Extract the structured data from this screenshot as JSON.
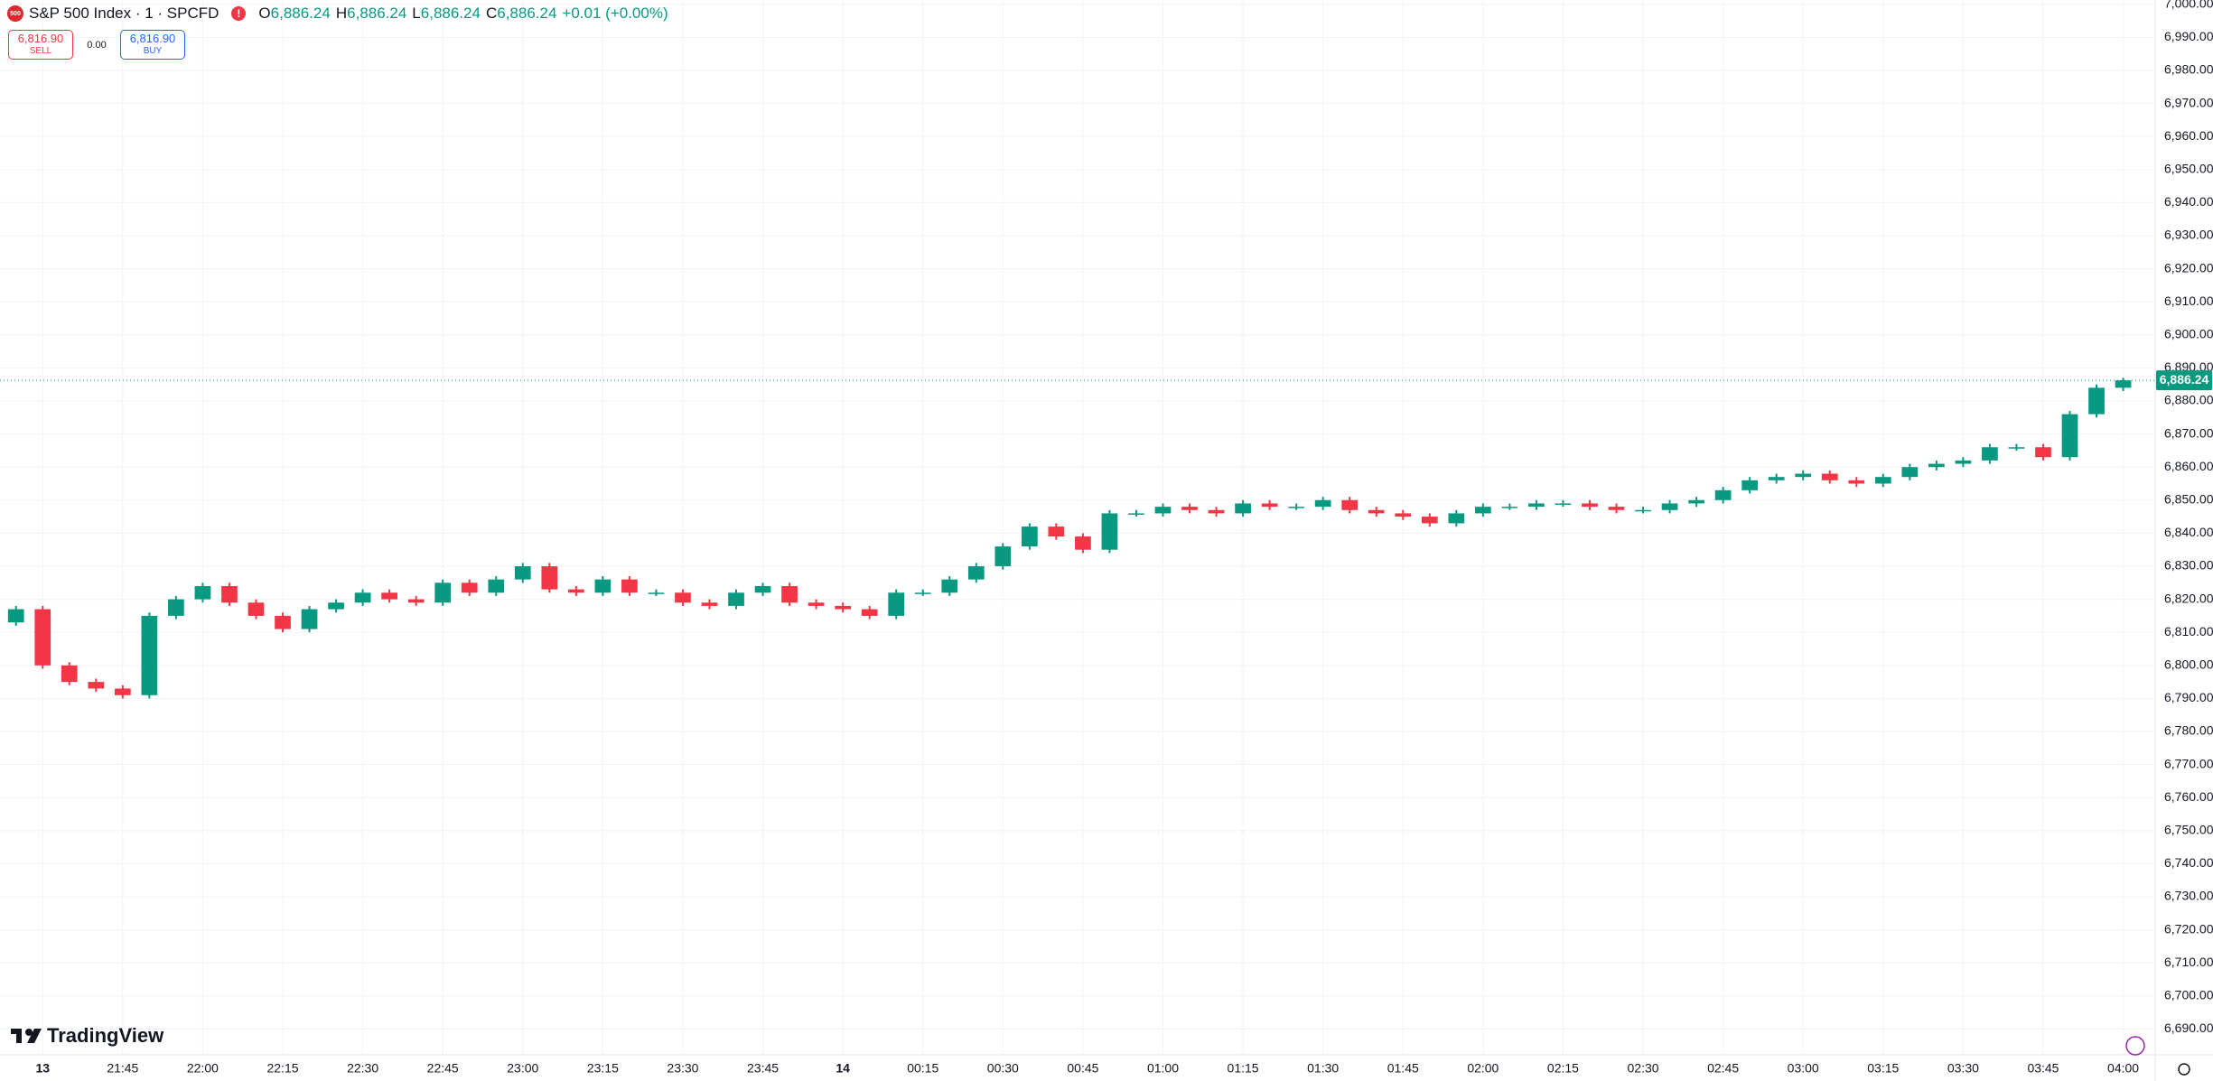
{
  "header": {
    "symbol": "S&P 500 Index · 1 · SPCFD",
    "o_label": "O",
    "open": "6,886.24",
    "h_label": "H",
    "high": "6,886.24",
    "l_label": "L",
    "low": "6,886.24",
    "c_label": "C",
    "close": "6,886.24",
    "change": "+0.01 (+0.00%)"
  },
  "trade": {
    "sell_price": "6,816.90",
    "sell": "SELL",
    "spread": "0.00",
    "buy_price": "6,816.90",
    "buy": "BUY"
  },
  "brand": "TradingView",
  "chart_data": {
    "type": "candlestick",
    "up_color": "#089981",
    "down_color": "#f23645",
    "grid": true,
    "last_label": "6,886.24",
    "x": [
      "21:25",
      "21:30",
      "21:35",
      "21:40",
      "21:45",
      "21:50",
      "21:55",
      "22:00",
      "22:05",
      "22:10",
      "22:15",
      "22:20",
      "22:25",
      "22:30",
      "22:35",
      "22:40",
      "22:45",
      "22:50",
      "22:55",
      "23:00",
      "23:05",
      "23:10",
      "23:15",
      "23:20",
      "23:25",
      "23:30",
      "23:35",
      "23:40",
      "23:45",
      "23:50",
      "23:55",
      "00:00",
      "00:05",
      "00:10",
      "00:15",
      "00:20",
      "00:25",
      "00:30",
      "00:35",
      "00:40",
      "00:45",
      "00:50",
      "00:55",
      "01:00",
      "01:05",
      "01:10",
      "01:15",
      "01:20",
      "01:25",
      "01:30",
      "01:35",
      "01:40",
      "01:45",
      "01:50",
      "01:55",
      "02:00",
      "02:05",
      "02:10",
      "02:15",
      "02:20",
      "02:25",
      "02:30",
      "02:35",
      "02:40",
      "02:45",
      "02:50",
      "02:55",
      "03:00",
      "03:05",
      "03:10",
      "03:15",
      "03:20",
      "03:25",
      "03:30",
      "03:35",
      "03:40",
      "03:45",
      "03:50",
      "03:55",
      "04:00"
    ],
    "open": [
      6813,
      6817,
      6800,
      6795,
      6793,
      6791,
      6815,
      6820,
      6824,
      6819,
      6815,
      6811,
      6817,
      6819,
      6822,
      6820,
      6819,
      6825,
      6822,
      6826,
      6830,
      6823,
      6822,
      6826,
      6822,
      6822,
      6819,
      6818,
      6822,
      6824,
      6819,
      6818,
      6817,
      6815,
      6822,
      6822,
      6826,
      6830,
      6836,
      6842,
      6839,
      6835,
      6846,
      6846,
      6848,
      6847,
      6846,
      6849,
      6848,
      6848,
      6850,
      6847,
      6846,
      6845,
      6843,
      6846,
      6848,
      6848,
      6849,
      6849,
      6848,
      6847,
      6847,
      6849,
      6850,
      6853,
      6856,
      6857,
      6858,
      6856,
      6855,
      6857,
      6860,
      6861,
      6862,
      6866,
      6866,
      6863,
      6876,
      6884
    ],
    "high": [
      6818,
      6818,
      6801,
      6796,
      6794,
      6816,
      6821,
      6825,
      6825,
      6820,
      6816,
      6818,
      6820,
      6823,
      6823,
      6821,
      6826,
      6826,
      6827,
      6831,
      6831,
      6824,
      6827,
      6827,
      6823,
      6823,
      6820,
      6823,
      6825,
      6825,
      6820,
      6819,
      6818,
      6823,
      6823,
      6827,
      6831,
      6837,
      6843,
      6843,
      6840,
      6847,
      6847,
      6849,
      6849,
      6848,
      6850,
      6850,
      6849,
      6851,
      6851,
      6848,
      6847,
      6846,
      6847,
      6849,
      6849,
      6850,
      6850,
      6850,
      6849,
      6848,
      6850,
      6851,
      6854,
      6857,
      6858,
      6859,
      6859,
      6857,
      6858,
      6861,
      6862,
      6863,
      6867,
      6867,
      6867,
      6877,
      6885,
      6887
    ],
    "low": [
      6812,
      6799,
      6794,
      6792,
      6790,
      6790,
      6814,
      6819,
      6818,
      6814,
      6810,
      6810,
      6816,
      6818,
      6819,
      6818,
      6818,
      6821,
      6821,
      6825,
      6822,
      6821,
      6821,
      6821,
      6821,
      6818,
      6817,
      6817,
      6821,
      6818,
      6817,
      6816,
      6814,
      6814,
      6821,
      6821,
      6825,
      6829,
      6835,
      6838,
      6834,
      6834,
      6845,
      6845,
      6846,
      6845,
      6845,
      6847,
      6847,
      6847,
      6846,
      6845,
      6844,
      6842,
      6842,
      6845,
      6847,
      6847,
      6848,
      6847,
      6846,
      6846,
      6846,
      6848,
      6849,
      6852,
      6855,
      6856,
      6855,
      6854,
      6854,
      6856,
      6859,
      6860,
      6861,
      6865,
      6862,
      6862,
      6875,
      6883
    ],
    "close": [
      6817,
      6800,
      6795,
      6793,
      6791,
      6815,
      6820,
      6824,
      6819,
      6815,
      6811,
      6817,
      6819,
      6822,
      6820,
      6819,
      6825,
      6822,
      6826,
      6830,
      6823,
      6822,
      6826,
      6822,
      6822,
      6819,
      6818,
      6822,
      6824,
      6819,
      6818,
      6817,
      6815,
      6822,
      6822,
      6826,
      6830,
      6836,
      6842,
      6839,
      6835,
      6846,
      6846,
      6848,
      6847,
      6846,
      6849,
      6848,
      6848,
      6850,
      6847,
      6846,
      6845,
      6843,
      6846,
      6848,
      6848,
      6849,
      6849,
      6848,
      6847,
      6847,
      6849,
      6850,
      6853,
      6856,
      6857,
      6858,
      6856,
      6855,
      6857,
      6860,
      6861,
      6862,
      6866,
      6866,
      6863,
      6876,
      6884,
      6886.24
    ],
    "xlim": [
      "21:22",
      "04:06"
    ],
    "xticks": [
      {
        "value": "21:30",
        "label": "13"
      },
      "21:45",
      "22:00",
      "22:15",
      "22:30",
      "22:45",
      "23:00",
      "23:15",
      "23:30",
      "23:45",
      {
        "value": "00:00",
        "label": "14"
      },
      "00:15",
      "00:30",
      "00:45",
      "01:00",
      "01:15",
      "01:30",
      "01:45",
      "02:00",
      "02:15",
      "02:30",
      "02:45",
      "03:00",
      "03:15",
      "03:30",
      "03:45",
      "04:00"
    ],
    "ylim": [
      6682.2,
      7001.3
    ],
    "yticks": [
      {
        "value": 6690,
        "label": "6,690.00"
      },
      {
        "value": 6700,
        "label": "6,700.00"
      },
      {
        "value": 6710,
        "label": "6,710.00"
      },
      {
        "value": 6720,
        "label": "6,720.00"
      },
      {
        "value": 6730,
        "label": "6,730.00"
      },
      {
        "value": 6740,
        "label": "6,740.00"
      },
      {
        "value": 6750,
        "label": "6,750.00"
      },
      {
        "value": 6760,
        "label": "6,760.00"
      },
      {
        "value": 6770,
        "label": "6,770.00"
      },
      {
        "value": 6780,
        "label": "6,780.00"
      },
      {
        "value": 6790,
        "label": "6,790.00"
      },
      {
        "value": 6800,
        "label": "6,800.00"
      },
      {
        "value": 6810,
        "label": "6,810.00"
      },
      {
        "value": 6820,
        "label": "6,820.00"
      },
      {
        "value": 6830,
        "label": "6,830.00"
      },
      {
        "value": 6840,
        "label": "6,840.00"
      },
      {
        "value": 6850,
        "label": "6,850.00"
      },
      {
        "value": 6860,
        "label": "6,860.00"
      },
      {
        "value": 6870,
        "label": "6,870.00"
      },
      {
        "value": 6880,
        "label": "6,880.00"
      },
      {
        "value": 6890,
        "label": "6,890.00"
      },
      {
        "value": 6900,
        "label": "6,900.00"
      },
      {
        "value": 6910,
        "label": "6,910.00"
      },
      {
        "value": 6920,
        "label": "6,920.00"
      },
      {
        "value": 6930,
        "label": "6,930.00"
      },
      {
        "value": 6940,
        "label": "6,940.00"
      },
      {
        "value": 6950,
        "label": "6,950.00"
      },
      {
        "value": 6960,
        "label": "6,960.00"
      },
      {
        "value": 6970,
        "label": "6,970.00"
      },
      {
        "value": 6980,
        "label": "6,980.00"
      },
      {
        "value": 6990,
        "label": "6,990.00"
      },
      {
        "value": 7000,
        "label": "7,000.00"
      }
    ]
  }
}
